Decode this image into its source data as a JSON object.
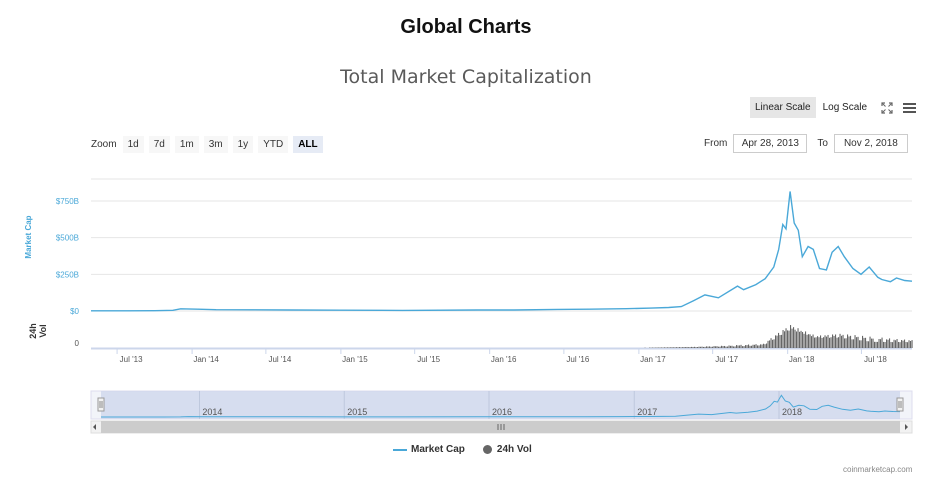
{
  "page": {
    "title": "Global Charts"
  },
  "toolbar": {
    "linear_label": "Linear Scale",
    "log_label": "Log Scale",
    "zoom_label": "Zoom",
    "zoom_buttons": [
      "1d",
      "7d",
      "1m",
      "3m",
      "1y",
      "YTD",
      "ALL"
    ],
    "zoom_active": "ALL",
    "from_label": "From",
    "from_value": "Apr 28, 2013",
    "to_label": "To",
    "to_value": "Nov 2, 2018"
  },
  "colors": {
    "market_cap": "#4aa8d8",
    "volume": "#666666",
    "navigator_fill": "#ccd6eb"
  },
  "credits": "coinmarketcap.com",
  "chart_data": {
    "type": "line",
    "title": "Total Market Capitalization",
    "scale": "linear",
    "ylabel_top": "Market Cap",
    "ylabel_bottom": "24h Vol",
    "y_ticks": [
      "$750B",
      "$500B",
      "$250B",
      "$0"
    ],
    "ylim": [
      0,
      900
    ],
    "y_unit": "billion USD",
    "vol_tick": "0",
    "x_ticks": [
      "Jul '13",
      "Jan '14",
      "Jul '14",
      "Jan '15",
      "Jul '15",
      "Jan '16",
      "Jul '16",
      "Jan '17",
      "Jul '17",
      "Jan '18",
      "Jul '18"
    ],
    "x_tick_dates": [
      "2013-07-01",
      "2014-01-01",
      "2014-07-01",
      "2015-01-01",
      "2015-07-01",
      "2016-01-01",
      "2016-07-01",
      "2017-01-01",
      "2017-07-01",
      "2018-01-01",
      "2018-07-01"
    ],
    "xlim": [
      "2013-04-28",
      "2018-11-02"
    ],
    "navigator_labels": [
      "2014",
      "2015",
      "2016",
      "2017",
      "2018"
    ],
    "navigator_dates": [
      "2014-01-01",
      "2015-01-01",
      "2016-01-01",
      "2017-01-01",
      "2018-01-01"
    ],
    "series": [
      {
        "name": "Market Cap",
        "x": [
          "2013-04-28",
          "2013-07-01",
          "2013-10-01",
          "2013-11-15",
          "2013-12-04",
          "2014-01-15",
          "2014-03-01",
          "2014-06-01",
          "2014-09-01",
          "2015-01-01",
          "2015-06-01",
          "2015-12-01",
          "2016-03-01",
          "2016-06-15",
          "2016-09-01",
          "2016-12-01",
          "2017-02-01",
          "2017-03-15",
          "2017-04-15",
          "2017-05-15",
          "2017-06-12",
          "2017-07-15",
          "2017-08-31",
          "2017-09-15",
          "2017-10-15",
          "2017-11-07",
          "2017-11-28",
          "2017-12-10",
          "2017-12-20",
          "2017-12-28",
          "2018-01-07",
          "2018-01-17",
          "2018-01-27",
          "2018-02-06",
          "2018-02-20",
          "2018-03-05",
          "2018-03-20",
          "2018-04-06",
          "2018-04-20",
          "2018-05-05",
          "2018-05-20",
          "2018-06-10",
          "2018-06-30",
          "2018-07-20",
          "2018-08-10",
          "2018-08-20",
          "2018-09-10",
          "2018-09-25",
          "2018-10-15",
          "2018-11-02"
        ],
        "values": [
          1.6,
          1.3,
          1.8,
          5,
          15,
          12,
          9,
          8,
          7,
          5.5,
          4,
          7,
          7,
          11,
          12,
          16,
          20,
          24,
          30,
          70,
          110,
          90,
          170,
          145,
          180,
          220,
          300,
          420,
          590,
          560,
          815,
          600,
          550,
          370,
          440,
          420,
          290,
          280,
          400,
          440,
          370,
          290,
          250,
          300,
          230,
          215,
          200,
          225,
          208,
          203
        ]
      },
      {
        "name": "24h Vol",
        "x": [
          "2013-04-28",
          "2015-01-01",
          "2016-06-01",
          "2017-01-01",
          "2017-05-15",
          "2017-08-15",
          "2017-11-01",
          "2017-12-15",
          "2018-01-07",
          "2018-02-06",
          "2018-03-10",
          "2018-05-05",
          "2018-07-20",
          "2018-09-15",
          "2018-11-02"
        ],
        "values": [
          0.01,
          0.02,
          0.1,
          0.3,
          1.5,
          3,
          5,
          22,
          30,
          23,
          16,
          18,
          13,
          11,
          10
        ]
      }
    ]
  }
}
